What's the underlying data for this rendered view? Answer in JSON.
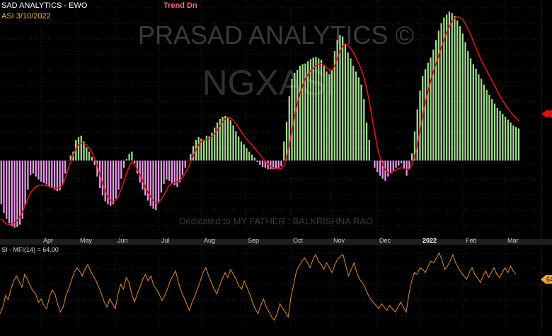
{
  "header": {
    "title_line": "SAD ANALYTICS - EWO",
    "date_line": "ASI  3/10/2022",
    "trend_label": "Trend Dn"
  },
  "watermarks": {
    "brand": "PRASAD ANALYTICS ©",
    "symbol": "NGXASI",
    "dedication": "Dedicated to MY FATHER : BALKRISHNA RAO"
  },
  "colors": {
    "background": "#000000",
    "grid": "#2b2b2b",
    "positive_bar": "#a3dc8f",
    "negative_bar": "#e69ae6",
    "signal_line": "#e0101a",
    "mfi_line": "#e0902a",
    "title_text": "#ffffff",
    "date_text": "#e8b84a",
    "trend_text": "#ff6e6e",
    "value_tag_upper": "#e01010",
    "value_tag_lower": "#f0a040",
    "axis_text": "#c8c8c8",
    "watermark": "#3a3a3a"
  },
  "lower_panel": {
    "label": "SI - MFI(14) = 64.00",
    "value_tag": "64"
  },
  "chart_data": [
    {
      "type": "bar",
      "title": "SAD ANALYTICS - EWO",
      "x_labels": [
        "Apr",
        "May",
        "Jun",
        "Jul",
        "Aug",
        "Sep",
        "Oct",
        "Nov",
        "Dec",
        "2022",
        "Feb",
        "Mar"
      ],
      "ylim": [
        -100,
        220
      ],
      "grid": true,
      "series": [
        {
          "role": "histogram",
          "values": [
            -60,
            -72,
            -80,
            -86,
            -90,
            -92,
            -91,
            -88,
            -80,
            -62,
            -40,
            -20,
            -18,
            -22,
            -26,
            -29,
            -31,
            -33,
            -36,
            -38,
            -40,
            -42,
            -41,
            -34,
            -18,
            0,
            7,
            12,
            28,
            32,
            34,
            26,
            18,
            12,
            5,
            -6,
            -22,
            -38,
            -48,
            -56,
            -60,
            -62,
            -60,
            -52,
            -40,
            -25,
            -10,
            2,
            9,
            12,
            -4,
            -18,
            -30,
            -40,
            -48,
            -55,
            -62,
            -66,
            -68,
            -58,
            -44,
            -32,
            -26,
            -28,
            -32,
            -34,
            -36,
            -30,
            -20,
            -10,
            0,
            9,
            20,
            28,
            32,
            30,
            28,
            34,
            33,
            38,
            45,
            52,
            57,
            60,
            61,
            60,
            55,
            48,
            40,
            33,
            26,
            22,
            17,
            12,
            8,
            4,
            -2,
            -6,
            -9,
            -10,
            -12,
            -12,
            -12,
            -11,
            -10,
            -8,
            26,
            53,
            88,
            112,
            120,
            124,
            130,
            132,
            133,
            136,
            139,
            141,
            142,
            140,
            138,
            130,
            122,
            118,
            124,
            150,
            165,
            172,
            170,
            160,
            148,
            140,
            130,
            122,
            114,
            104,
            84,
            52,
            28,
            0,
            -10,
            -16,
            -21,
            -25,
            -28,
            -22,
            -18,
            -14,
            -10,
            -7,
            -4,
            -10,
            -21,
            -12,
            10,
            40,
            70,
            96,
            116,
            125,
            134,
            141,
            152,
            165,
            178,
            188,
            196,
            200,
            204,
            202,
            198,
            192,
            184,
            174,
            162,
            150,
            140,
            132,
            126,
            118,
            112,
            104,
            97,
            90,
            84,
            78,
            72,
            68,
            64,
            60,
            56,
            52,
            48,
            46,
            44
          ]
        },
        {
          "role": "signal",
          "values": [
            -80,
            -84,
            -87,
            -88,
            -87,
            -85,
            -82,
            -77,
            -70,
            -61,
            -52,
            -44,
            -39,
            -36,
            -34,
            -34,
            -34,
            -35,
            -36,
            -37,
            -38,
            -38,
            -37,
            -33,
            -24,
            -12,
            -1,
            8,
            16,
            22,
            24,
            23,
            21,
            17,
            11,
            3,
            -7,
            -20,
            -32,
            -42,
            -50,
            -55,
            -56,
            -54,
            -48,
            -39,
            -28,
            -17,
            -8,
            -2,
            -5,
            -12,
            -20,
            -28,
            -36,
            -44,
            -50,
            -55,
            -58,
            -57,
            -53,
            -47,
            -40,
            -34,
            -31,
            -30,
            -29,
            -27,
            -23,
            -17,
            -10,
            -2,
            7,
            15,
            22,
            26,
            28,
            29,
            30,
            33,
            37,
            42,
            48,
            53,
            57,
            59,
            58,
            55,
            50,
            45,
            39,
            34,
            29,
            25,
            21,
            17,
            12,
            8,
            3,
            -1,
            -5,
            -8,
            -10,
            -11,
            -11,
            -11,
            -7,
            5,
            22,
            42,
            62,
            78,
            92,
            103,
            112,
            118,
            123,
            127,
            130,
            132,
            133,
            131,
            127,
            124,
            124,
            130,
            140,
            150,
            157,
            160,
            158,
            154,
            148,
            141,
            133,
            124,
            113,
            98,
            80,
            58,
            38,
            18,
            4,
            -6,
            -13,
            -17,
            -17,
            -15,
            -13,
            -11,
            -10,
            -11,
            -12,
            -12,
            -5,
            6,
            22,
            42,
            62,
            80,
            96,
            110,
            122,
            133,
            144,
            155,
            166,
            176,
            184,
            191,
            195,
            197,
            196,
            193,
            187,
            180,
            172,
            163,
            154,
            145,
            137,
            130,
            123,
            116,
            109,
            102,
            95,
            88,
            82,
            76,
            71,
            66,
            62,
            58,
            54
          ]
        }
      ],
      "labels": {
        "trend": "Trend Dn"
      }
    },
    {
      "type": "line",
      "title": "SI - MFI(14) = 64.00",
      "x_labels": [
        "Apr",
        "May",
        "Jun",
        "Jul",
        "Aug",
        "Sep",
        "Oct",
        "Nov",
        "Dec",
        "2022",
        "Feb",
        "Mar"
      ],
      "ylim": [
        0,
        100
      ],
      "grid": true,
      "series": [
        {
          "name": "MFI(14)",
          "values": [
            16,
            24,
            38,
            33,
            46,
            56,
            62,
            55,
            48,
            64,
            58,
            50,
            44,
            40,
            30,
            34,
            26,
            22,
            36,
            45,
            40,
            28,
            18,
            24,
            38,
            46,
            56,
            66,
            72,
            68,
            62,
            70,
            76,
            68,
            62,
            56,
            48,
            40,
            30,
            24,
            34,
            28,
            22,
            40,
            52,
            46,
            60,
            54,
            40,
            30,
            40,
            48,
            58,
            64,
            56,
            62,
            50,
            46,
            40,
            32,
            38,
            46,
            56,
            62,
            68,
            54,
            44,
            36,
            28,
            20,
            30,
            38,
            46,
            56,
            66,
            72,
            62,
            54,
            46,
            40,
            50,
            58,
            66,
            60,
            70,
            64,
            58,
            50,
            46,
            56,
            48,
            40,
            30,
            22,
            16,
            26,
            34,
            24,
            18,
            12,
            8,
            16,
            28,
            22,
            18,
            12,
            36,
            52,
            68,
            74,
            80,
            84,
            78,
            72,
            82,
            88,
            80,
            76,
            70,
            78,
            72,
            66,
            76,
            82,
            86,
            88,
            74,
            62,
            70,
            78,
            66,
            58,
            54,
            48,
            40,
            34,
            30,
            26,
            22,
            28,
            24,
            20,
            26,
            22,
            18,
            24,
            30,
            24,
            18,
            40,
            56,
            66,
            64,
            72,
            70,
            66,
            74,
            80,
            78,
            84,
            90,
            82,
            70,
            74,
            80,
            88,
            78,
            72,
            66,
            62,
            58,
            66,
            72,
            64,
            60,
            54,
            62,
            68,
            60,
            66,
            72,
            64,
            60,
            66,
            72,
            66,
            74,
            68,
            64
          ]
        }
      ]
    }
  ]
}
